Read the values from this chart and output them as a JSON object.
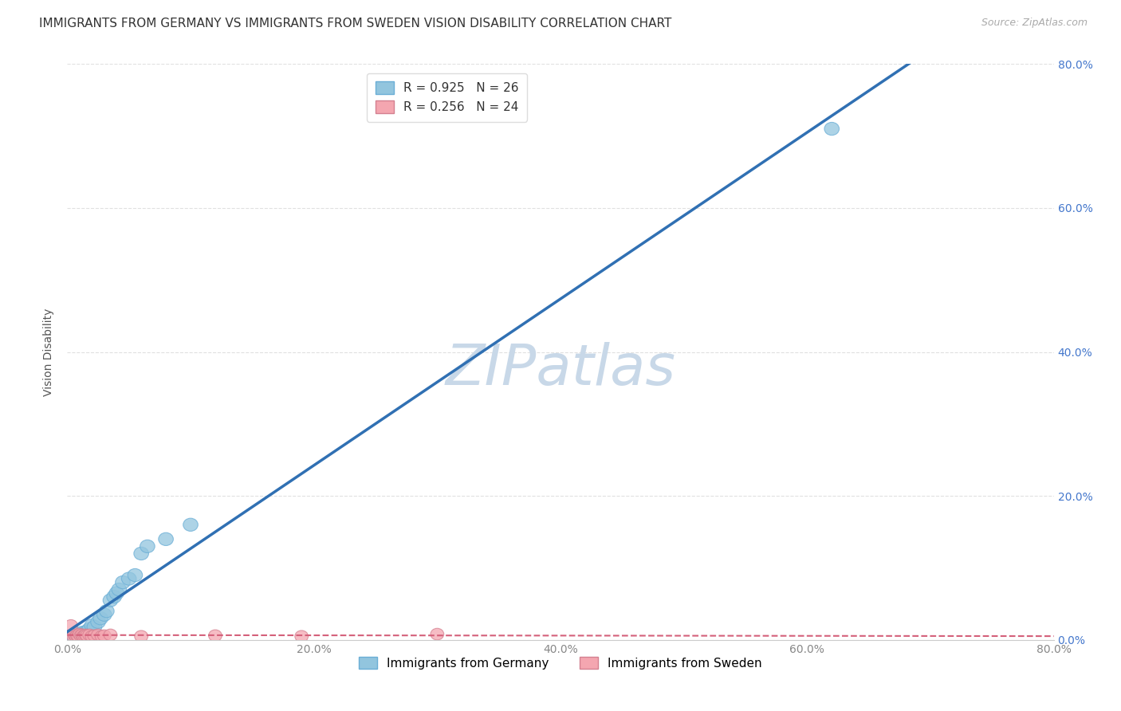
{
  "title": "IMMIGRANTS FROM GERMANY VS IMMIGRANTS FROM SWEDEN VISION DISABILITY CORRELATION CHART",
  "source": "Source: ZipAtlas.com",
  "ylabel": "Vision Disability",
  "xlim": [
    0.0,
    0.8
  ],
  "ylim": [
    0.0,
    0.8
  ],
  "germany_color": "#92c5de",
  "sweden_color": "#f4a6b0",
  "germany_line_color": "#3070b3",
  "sweden_line_color": "#d4607a",
  "watermark": "ZIPatlas",
  "R_germany": 0.925,
  "N_germany": 26,
  "R_sweden": 0.256,
  "N_sweden": 24,
  "germany_points_x": [
    0.005,
    0.008,
    0.01,
    0.012,
    0.013,
    0.015,
    0.016,
    0.018,
    0.02,
    0.022,
    0.025,
    0.027,
    0.03,
    0.032,
    0.035,
    0.038,
    0.04,
    0.042,
    0.045,
    0.05,
    0.055,
    0.06,
    0.065,
    0.08,
    0.1,
    0.62
  ],
  "germany_points_y": [
    0.005,
    0.006,
    0.008,
    0.01,
    0.008,
    0.01,
    0.012,
    0.015,
    0.02,
    0.018,
    0.025,
    0.03,
    0.035,
    0.04,
    0.055,
    0.06,
    0.065,
    0.07,
    0.08,
    0.085,
    0.09,
    0.12,
    0.13,
    0.14,
    0.16,
    0.71
  ],
  "sweden_points_x": [
    0.003,
    0.005,
    0.006,
    0.007,
    0.008,
    0.009,
    0.01,
    0.011,
    0.012,
    0.013,
    0.014,
    0.015,
    0.016,
    0.018,
    0.02,
    0.022,
    0.025,
    0.028,
    0.03,
    0.035,
    0.06,
    0.12,
    0.19,
    0.3
  ],
  "sweden_points_y": [
    0.02,
    0.005,
    0.007,
    0.005,
    0.006,
    0.005,
    0.008,
    0.006,
    0.007,
    0.005,
    0.006,
    0.007,
    0.006,
    0.007,
    0.005,
    0.006,
    0.007,
    0.005,
    0.006,
    0.007,
    0.005,
    0.006,
    0.005,
    0.008
  ],
  "legend_label_germany": "Immigrants from Germany",
  "legend_label_sweden": "Immigrants from Sweden",
  "grid_color": "#dddddd",
  "background_color": "#ffffff",
  "title_fontsize": 11,
  "axis_label_fontsize": 10,
  "tick_fontsize": 10,
  "right_tick_color": "#4477cc",
  "watermark_color": "#c8d8e8",
  "watermark_fontsize": 52,
  "ytick_vals": [
    0.0,
    0.2,
    0.4,
    0.6,
    0.8
  ],
  "xtick_vals": [
    0.0,
    0.2,
    0.4,
    0.6,
    0.8
  ]
}
